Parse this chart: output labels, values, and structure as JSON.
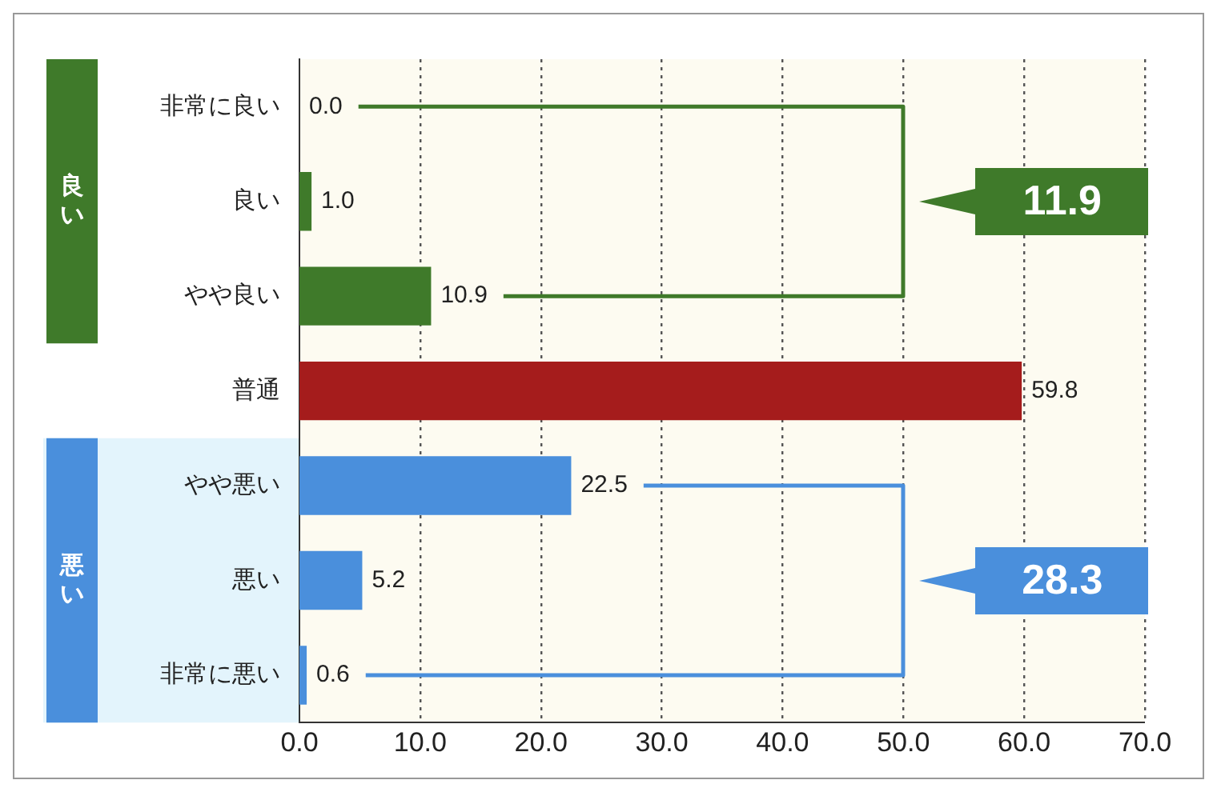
{
  "chart_data": {
    "type": "bar",
    "orientation": "horizontal",
    "categories": [
      "非常に良い",
      "良い",
      "やや良い",
      "普通",
      "やや悪い",
      "悪い",
      "非常に悪い"
    ],
    "values": [
      0.0,
      1.0,
      10.9,
      59.8,
      22.5,
      5.2,
      0.6
    ],
    "colors": [
      "#3f7a2a",
      "#3f7a2a",
      "#3f7a2a",
      "#a51c1c",
      "#4a8fdc",
      "#4a8fdc",
      "#4a8fdc"
    ],
    "value_labels": [
      "0.0",
      "1.0",
      "10.9",
      "59.8",
      "22.5",
      "5.2",
      "0.6"
    ],
    "xlim": [
      0,
      70
    ],
    "xticks": [
      {
        "value": 0,
        "label": "0.0"
      },
      {
        "value": 10,
        "label": "10.0"
      },
      {
        "value": 20,
        "label": "20.0"
      },
      {
        "value": 30,
        "label": "30.0"
      },
      {
        "value": 40,
        "label": "40.0"
      },
      {
        "value": 50,
        "label": "50.0"
      },
      {
        "value": 60,
        "label": "60.0"
      },
      {
        "value": 70,
        "label": "70.0"
      }
    ],
    "grid": "x",
    "annotations": [
      "良い",
      "11.9",
      "悪い",
      "28.3"
    ]
  }
}
